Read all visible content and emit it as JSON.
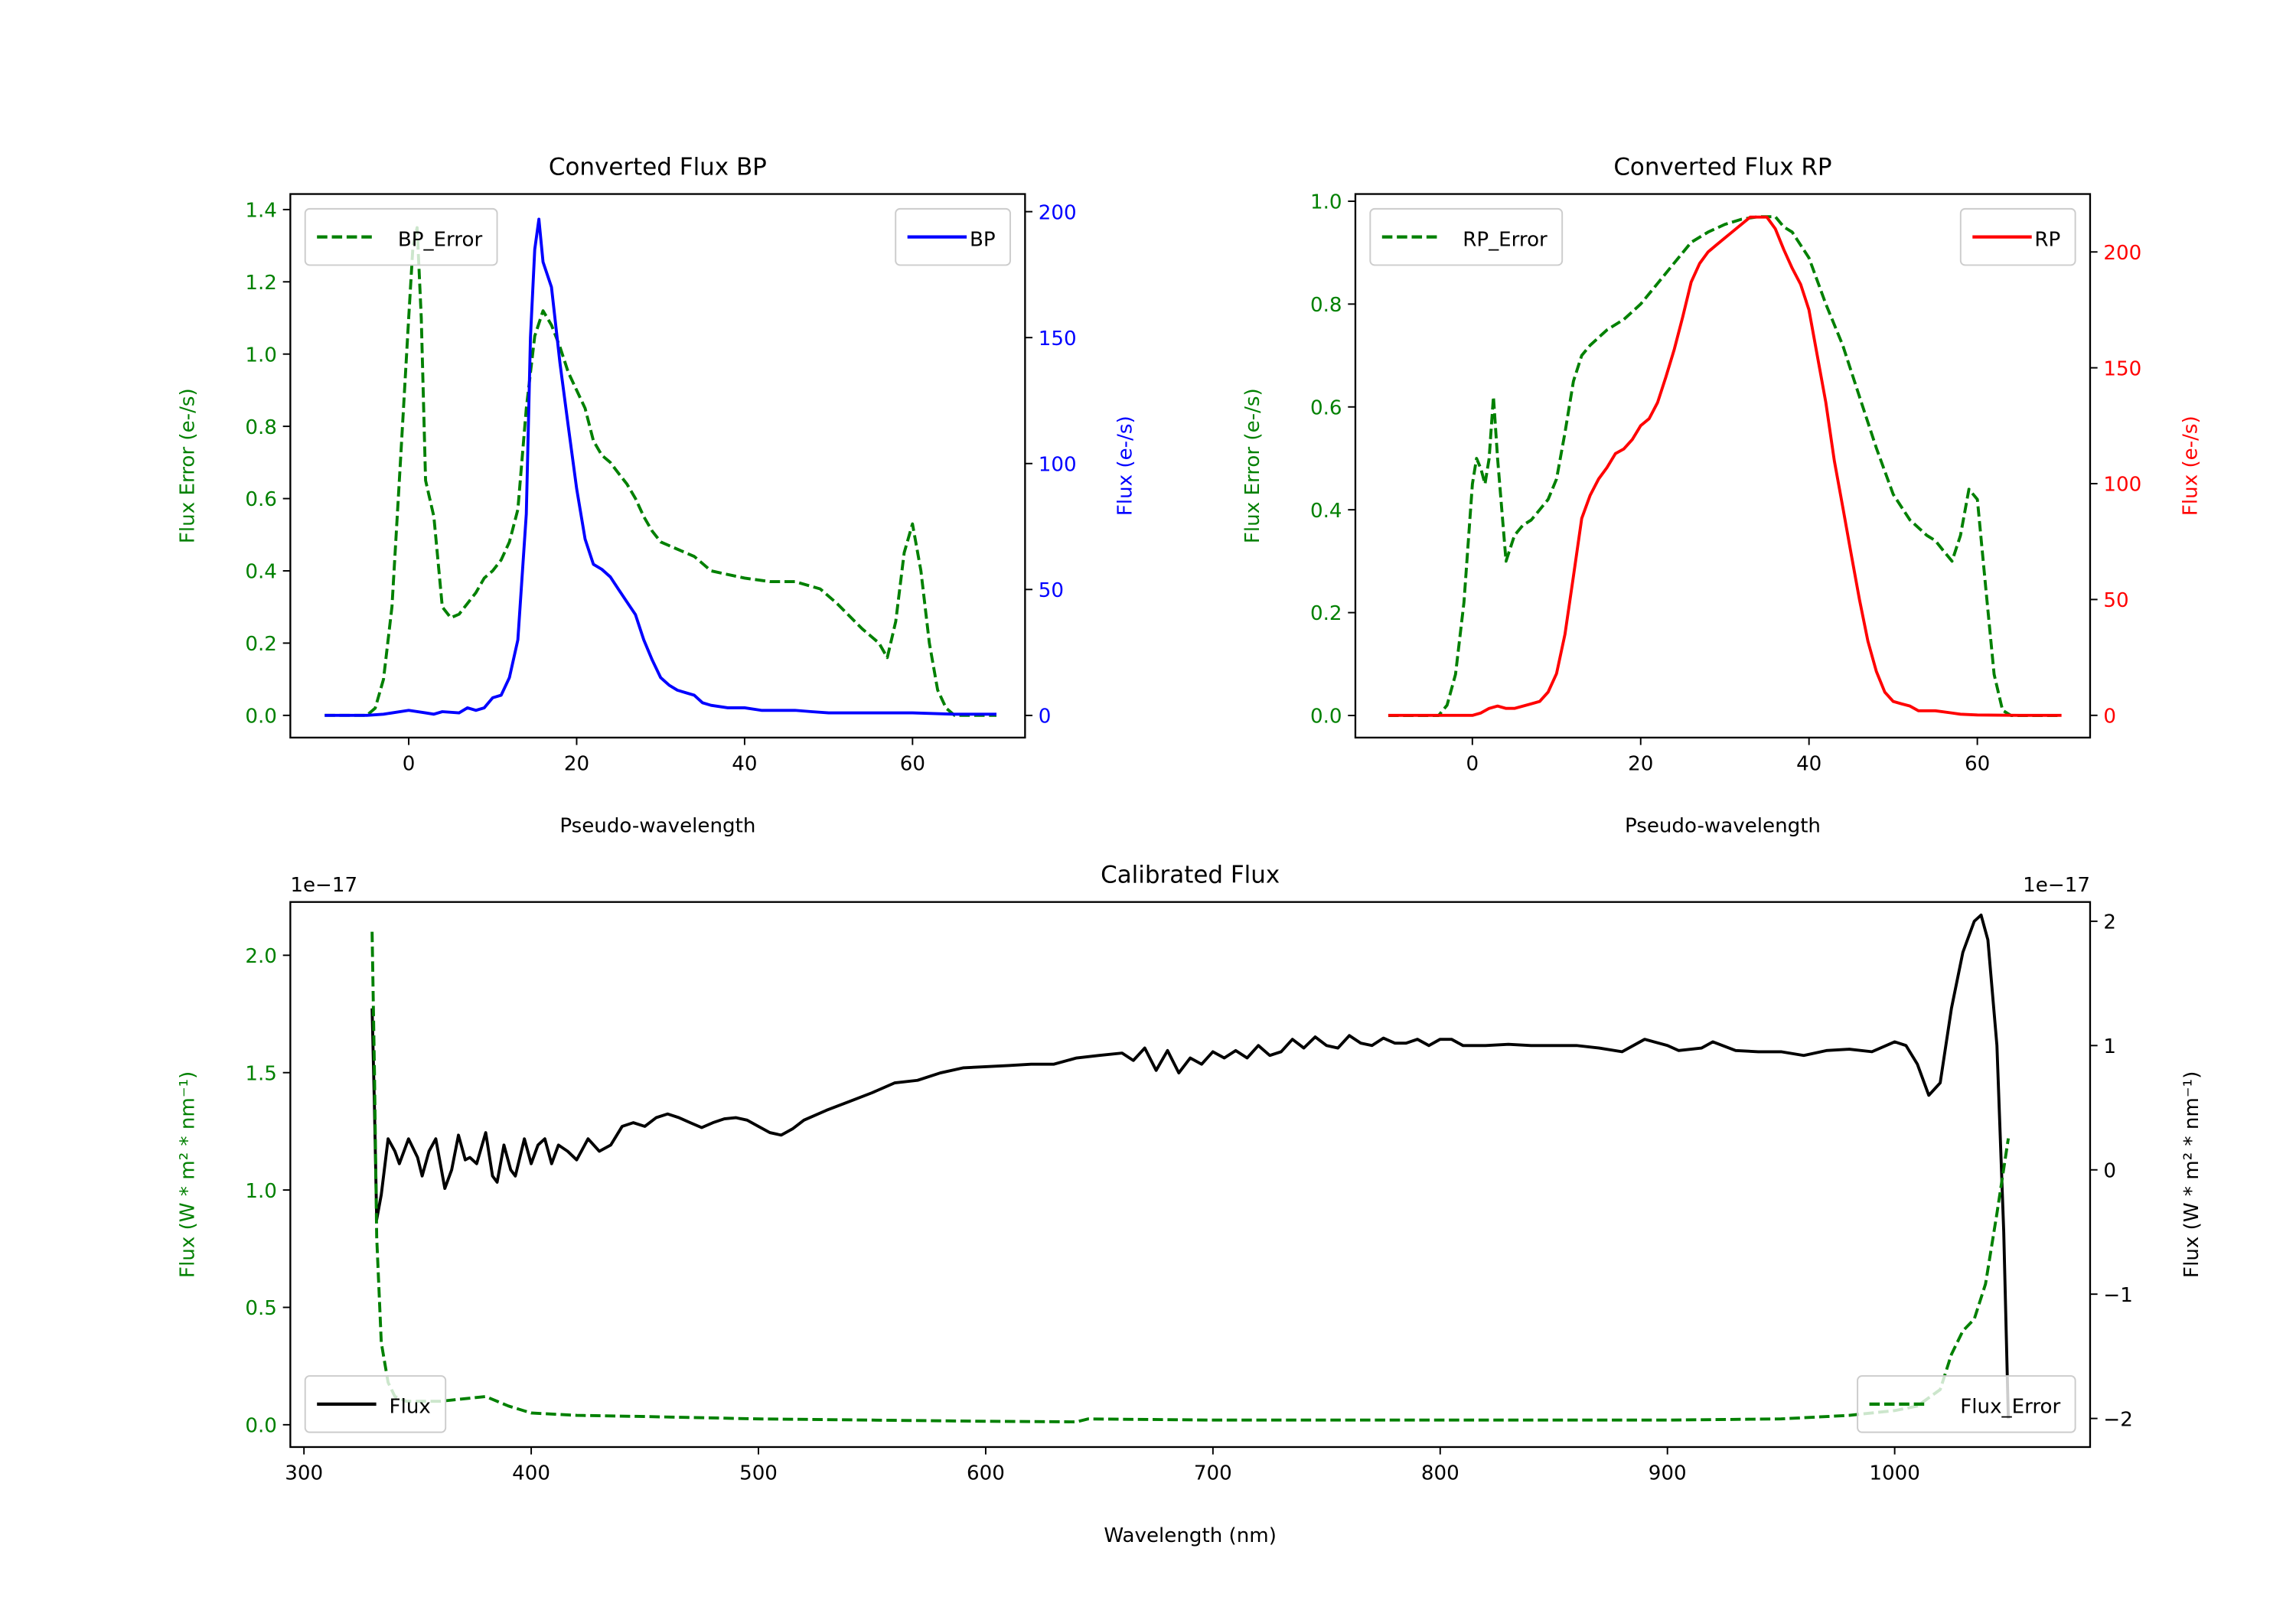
{
  "chart_data": [
    {
      "type": "line",
      "title": "Converted Flux BP",
      "xlabel": "Pseudo-wavelength",
      "ylabel_left": "Flux Error (e-/s)",
      "ylabel_right": "Flux (e-/s)",
      "left_color": "#008000",
      "right_color": "#0000ff",
      "xlim": [
        -14.1,
        73.4
      ],
      "ylim_left": [
        -0.0615,
        1.443
      ],
      "ylim_right": [
        -8.8,
        207
      ],
      "xticks": [
        0,
        20,
        40,
        60
      ],
      "yticks_left": [
        "0.0",
        "0.2",
        "0.4",
        "0.6",
        "0.8",
        "1.0",
        "1.2",
        "1.4"
      ],
      "yticks_right": [
        "0",
        "50",
        "100",
        "150",
        "200"
      ],
      "series": [
        {
          "name": "BP_Error",
          "axis": "left",
          "color": "#008000",
          "style": "dashed",
          "legend": "upper-left",
          "x": [
            -10,
            -5,
            -4,
            -3,
            -2,
            -1,
            0,
            0.5,
            1,
            1.5,
            2,
            3,
            4,
            5,
            6,
            7,
            8,
            9,
            10,
            11,
            12,
            13,
            14,
            15,
            16,
            17,
            18,
            19,
            20,
            21,
            22,
            23,
            24,
            25,
            26,
            27,
            28,
            29,
            30,
            32,
            34,
            36,
            38,
            40,
            43,
            46,
            49,
            51,
            54,
            56,
            57,
            58,
            59,
            60,
            61,
            62,
            63,
            64,
            65,
            70
          ],
          "y": [
            0,
            0,
            0.02,
            0.1,
            0.3,
            0.7,
            1.1,
            1.3,
            1.35,
            1.1,
            0.65,
            0.55,
            0.3,
            0.27,
            0.28,
            0.31,
            0.34,
            0.38,
            0.4,
            0.43,
            0.48,
            0.57,
            0.85,
            1.05,
            1.12,
            1.08,
            1.02,
            0.95,
            0.9,
            0.85,
            0.76,
            0.72,
            0.7,
            0.67,
            0.64,
            0.6,
            0.55,
            0.51,
            0.48,
            0.46,
            0.44,
            0.4,
            0.39,
            0.38,
            0.37,
            0.37,
            0.35,
            0.31,
            0.24,
            0.2,
            0.16,
            0.26,
            0.45,
            0.53,
            0.4,
            0.2,
            0.07,
            0.02,
            0,
            0
          ]
        },
        {
          "name": "BP",
          "axis": "right",
          "color": "#0000ff",
          "style": "solid",
          "legend": "upper-right",
          "x": [
            -10,
            -5,
            -3,
            0,
            2,
            3,
            4,
            6,
            7,
            8,
            9,
            10,
            11,
            12,
            13,
            14,
            14.5,
            15,
            15.5,
            16,
            17,
            18,
            19,
            20,
            21,
            22,
            23,
            24,
            25,
            26,
            27,
            28,
            29,
            30,
            31,
            32,
            33,
            34,
            35,
            36,
            38,
            40,
            42,
            44,
            46,
            48,
            50,
            55,
            60,
            65,
            70
          ],
          "y": [
            0,
            0,
            0.5,
            2,
            1,
            0.5,
            1.5,
            1,
            3,
            2,
            3,
            7,
            8,
            15,
            30,
            80,
            150,
            185,
            197,
            180,
            170,
            140,
            115,
            90,
            70,
            60,
            58,
            55,
            50,
            45,
            40,
            30,
            22,
            15,
            12,
            10,
            9,
            8,
            5,
            4,
            3,
            3,
            2,
            2,
            2,
            1.5,
            1,
            1,
            1,
            0.5,
            0.5
          ]
        }
      ]
    },
    {
      "type": "line",
      "title": "Converted Flux RP",
      "xlabel": "Pseudo-wavelength",
      "ylabel_left": "Flux Error (e-/s)",
      "ylabel_right": "Flux (e-/s)",
      "left_color": "#008000",
      "right_color": "#ff0000",
      "xlim": [
        -13.9,
        73.4
      ],
      "ylim_left": [
        -0.043,
        1.014
      ],
      "ylim_right": [
        -9.6,
        225
      ],
      "xticks": [
        0,
        20,
        40,
        60
      ],
      "yticks_left": [
        "0.0",
        "0.2",
        "0.4",
        "0.6",
        "0.8",
        "1.0"
      ],
      "yticks_right": [
        "0",
        "50",
        "100",
        "150",
        "200"
      ],
      "series": [
        {
          "name": "RP_Error",
          "axis": "left",
          "color": "#008000",
          "style": "dashed",
          "legend": "upper-left",
          "x": [
            -10,
            -4,
            -3,
            -2,
            -1,
            0,
            0.5,
            1,
            1.5,
            2,
            2.5,
            3,
            4,
            5,
            6,
            7,
            8,
            9,
            10,
            11,
            12,
            13,
            14,
            16,
            18,
            20,
            22,
            24,
            26,
            28,
            30,
            32,
            34,
            36,
            37,
            38,
            40,
            42,
            44,
            46,
            48,
            50,
            52,
            54,
            55,
            56,
            57,
            58,
            59,
            60,
            61,
            62,
            63,
            64,
            70
          ],
          "y": [
            0,
            0,
            0.02,
            0.08,
            0.22,
            0.45,
            0.5,
            0.48,
            0.45,
            0.5,
            0.62,
            0.5,
            0.3,
            0.35,
            0.37,
            0.38,
            0.4,
            0.42,
            0.46,
            0.55,
            0.65,
            0.7,
            0.72,
            0.75,
            0.77,
            0.8,
            0.84,
            0.88,
            0.92,
            0.94,
            0.955,
            0.965,
            0.97,
            0.97,
            0.95,
            0.94,
            0.89,
            0.8,
            0.72,
            0.62,
            0.52,
            0.43,
            0.38,
            0.35,
            0.34,
            0.32,
            0.3,
            0.35,
            0.44,
            0.42,
            0.25,
            0.08,
            0.01,
            0,
            0
          ]
        },
        {
          "name": "RP",
          "axis": "right",
          "color": "#ff0000",
          "style": "solid",
          "legend": "upper-right",
          "x": [
            -10,
            -2,
            0,
            1,
            2,
            3,
            4,
            5,
            7,
            8,
            9,
            10,
            11,
            12,
            13,
            14,
            15,
            16,
            17,
            18,
            19,
            20,
            21,
            22,
            23,
            24,
            25,
            26,
            27,
            28,
            29,
            30,
            31,
            32,
            33,
            34,
            35,
            36,
            37,
            38,
            39,
            40,
            41,
            42,
            43,
            44,
            45,
            46,
            47,
            48,
            49,
            50,
            51,
            52,
            53,
            55,
            57,
            58,
            60,
            65,
            70
          ],
          "y": [
            0,
            0,
            0,
            1,
            3,
            4,
            3,
            3,
            5,
            6,
            10,
            18,
            35,
            60,
            85,
            95,
            102,
            107,
            113,
            115,
            119,
            125,
            128,
            135,
            146,
            158,
            172,
            187,
            195,
            200,
            203,
            206,
            209,
            212,
            215,
            215,
            215,
            210,
            201,
            193,
            186,
            175,
            155,
            135,
            110,
            90,
            70,
            50,
            32,
            19,
            10,
            6,
            5,
            4,
            2,
            2,
            1,
            0.5,
            0.2,
            0,
            0
          ]
        }
      ]
    },
    {
      "type": "line",
      "title": "Calibrated Flux",
      "xlabel": "Wavelength (nm)",
      "ylabel_left": "Flux (W * m² * nm⁻¹)",
      "ylabel_right": "Flux (W * m² * nm⁻¹)",
      "offset_left": "1e−17",
      "offset_right": "1e−17",
      "left_color": "#008000",
      "right_color": "#000000",
      "xlim": [
        294,
        1086
      ],
      "ylim_left": [
        -0.095,
        2.227
      ],
      "ylim_right": [
        -2.23,
        2.155
      ],
      "xticks": [
        300,
        400,
        500,
        600,
        700,
        800,
        900,
        1000
      ],
      "yticks_left": [
        "0.0",
        "0.5",
        "1.0",
        "1.5",
        "2.0"
      ],
      "yticks_right": [
        "−2",
        "−1",
        "0",
        "1",
        "2"
      ],
      "yticks_right_values": [
        -2,
        -1,
        0,
        1,
        2
      ],
      "series": [
        {
          "name": "Flux",
          "axis": "right",
          "color": "#000000",
          "style": "solid",
          "legend": "lower-left",
          "x": [
            330,
            331,
            332,
            334,
            337,
            340,
            342,
            346,
            350,
            352,
            355,
            358,
            362,
            365,
            368,
            371,
            373,
            376,
            380,
            383,
            385,
            388,
            391,
            393,
            397,
            400,
            403,
            406,
            409,
            412,
            416,
            420,
            425,
            430,
            435,
            440,
            445,
            450,
            455,
            460,
            465,
            470,
            475,
            480,
            485,
            490,
            495,
            500,
            505,
            510,
            515,
            520,
            530,
            540,
            550,
            560,
            570,
            580,
            590,
            600,
            610,
            620,
            630,
            640,
            650,
            660,
            665,
            670,
            675,
            680,
            685,
            690,
            695,
            700,
            705,
            710,
            715,
            720,
            725,
            730,
            735,
            740,
            745,
            750,
            755,
            760,
            765,
            770,
            775,
            780,
            785,
            790,
            795,
            800,
            805,
            810,
            820,
            830,
            840,
            850,
            860,
            870,
            880,
            890,
            900,
            905,
            915,
            920,
            930,
            940,
            950,
            960,
            970,
            980,
            990,
            1000,
            1005,
            1010,
            1015,
            1020,
            1025,
            1030,
            1035,
            1038,
            1041,
            1045,
            1048,
            1050
          ],
          "y": [
            1.3,
            0.5,
            -0.4,
            -0.2,
            0.25,
            0.15,
            0.05,
            0.25,
            0.1,
            -0.05,
            0.15,
            0.25,
            -0.15,
            0.0,
            0.28,
            0.08,
            0.1,
            0.05,
            0.3,
            -0.05,
            -0.1,
            0.2,
            0.0,
            -0.05,
            0.25,
            0.05,
            0.2,
            0.25,
            0.05,
            0.2,
            0.15,
            0.08,
            0.25,
            0.15,
            0.2,
            0.35,
            0.38,
            0.35,
            0.42,
            0.45,
            0.42,
            0.38,
            0.34,
            0.38,
            0.41,
            0.42,
            0.4,
            0.35,
            0.3,
            0.28,
            0.33,
            0.4,
            0.48,
            0.55,
            0.62,
            0.7,
            0.72,
            0.78,
            0.82,
            0.83,
            0.84,
            0.85,
            0.85,
            0.9,
            0.92,
            0.94,
            0.88,
            0.98,
            0.8,
            0.96,
            0.78,
            0.9,
            0.85,
            0.95,
            0.9,
            0.96,
            0.9,
            1.0,
            0.92,
            0.95,
            1.05,
            0.98,
            1.07,
            1.0,
            0.98,
            1.08,
            1.02,
            1.0,
            1.06,
            1.02,
            1.02,
            1.05,
            1.0,
            1.05,
            1.05,
            1.0,
            1.0,
            1.01,
            1.0,
            1.0,
            1.0,
            0.98,
            0.95,
            1.05,
            1.0,
            0.96,
            0.98,
            1.03,
            0.96,
            0.95,
            0.95,
            0.92,
            0.96,
            0.97,
            0.95,
            1.03,
            1.0,
            0.85,
            0.6,
            0.7,
            1.3,
            1.75,
            2.0,
            2.05,
            1.85,
            1.0,
            -0.5,
            -2.0
          ]
        },
        {
          "name": "Flux_Error",
          "axis": "left",
          "color": "#008000",
          "style": "dashed",
          "legend": "lower-right",
          "x": [
            330,
            331,
            332,
            334,
            337,
            340,
            345,
            360,
            380,
            390,
            400,
            420,
            450,
            500,
            550,
            600,
            640,
            645,
            700,
            800,
            900,
            950,
            980,
            1000,
            1010,
            1020,
            1025,
            1030,
            1035,
            1040,
            1045,
            1050
          ],
          "y": [
            2.1,
            1.5,
            0.8,
            0.35,
            0.18,
            0.12,
            0.1,
            0.1,
            0.12,
            0.08,
            0.05,
            0.04,
            0.035,
            0.025,
            0.02,
            0.015,
            0.012,
            0.025,
            0.02,
            0.02,
            0.02,
            0.025,
            0.04,
            0.06,
            0.08,
            0.15,
            0.3,
            0.4,
            0.45,
            0.6,
            0.9,
            1.22
          ]
        }
      ]
    }
  ]
}
